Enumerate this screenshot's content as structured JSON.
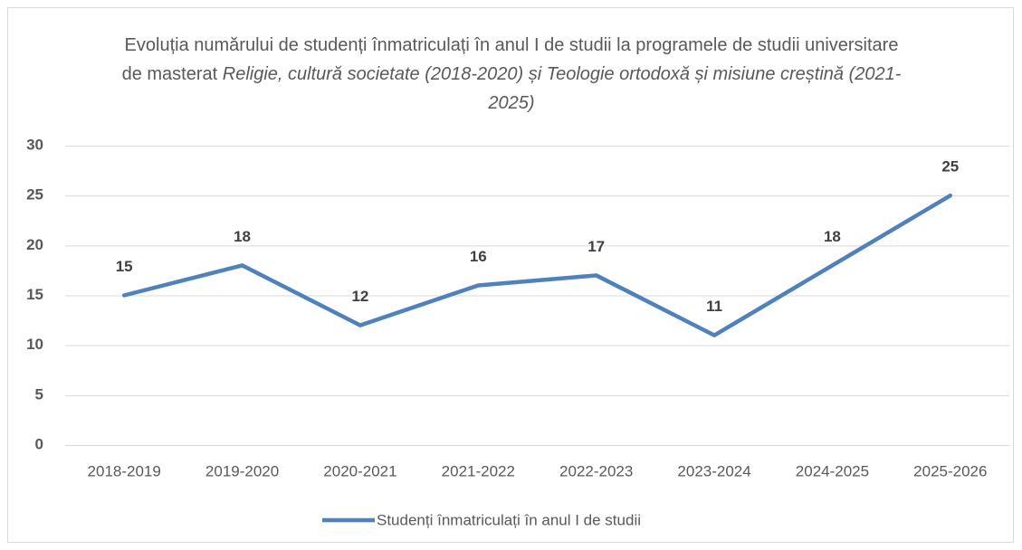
{
  "chart_data": {
    "type": "line",
    "title": {
      "regular": "Evoluția numărului de studenți înmatriculați în anul I de studii la programele de studii universitare de masterat",
      "italic": "Religie, cultură societate (2018-2020) și Teologie ortodoxă și misiune creștină (2021-2025)"
    },
    "categories": [
      "2018-2019",
      "2019-2020",
      "2020-2021",
      "2021-2022",
      "2022-2023",
      "2023-2024",
      "2024-2025",
      "2025-2026"
    ],
    "series": [
      {
        "name": "Studenți înmatriculați în anul I de studii",
        "color": "#4f81bd",
        "values": [
          15,
          18,
          12,
          16,
          17,
          11,
          18,
          25
        ]
      }
    ],
    "ylim": [
      0,
      30
    ],
    "yticks": [
      0,
      5,
      10,
      15,
      20,
      25,
      30
    ],
    "grid": true,
    "legend": "bottom"
  }
}
